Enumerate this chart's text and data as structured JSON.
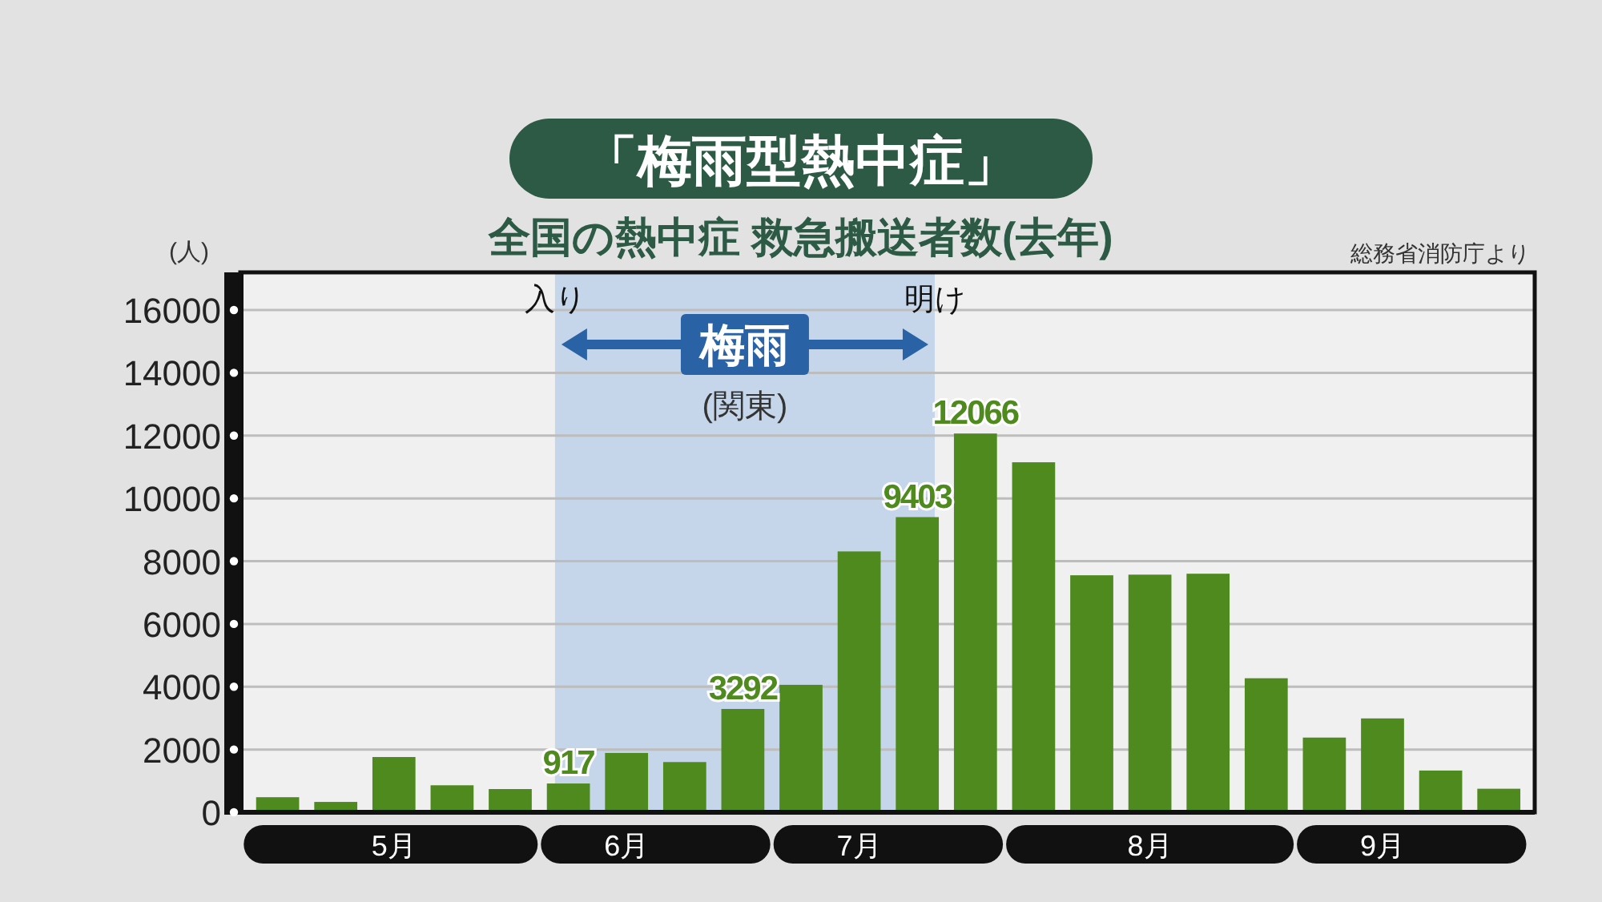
{
  "chart_data": {
    "type": "bar",
    "title": "「梅雨型熱中症」",
    "subtitle": "全国の熱中症 救急搬送者数(去年)",
    "ylabel": "(人)",
    "categories": [
      null,
      null,
      "5月",
      null,
      null,
      null,
      "6月",
      null,
      null,
      null,
      "7月",
      null,
      null,
      null,
      null,
      "8月",
      null,
      null,
      null,
      "9月",
      null,
      null
    ],
    "values": [
      480,
      330,
      1760,
      860,
      740,
      917,
      1890,
      1600,
      3292,
      4060,
      8310,
      9403,
      12066,
      11150,
      7550,
      7570,
      7600,
      4270,
      2380,
      2990,
      1330,
      750
    ],
    "value_labels": [
      null,
      null,
      null,
      null,
      null,
      "917",
      null,
      null,
      "3292",
      null,
      null,
      "9403",
      "12066",
      null,
      null,
      null,
      null,
      null,
      null,
      null,
      null,
      null
    ],
    "color": "#4e8a1e",
    "ylim": [
      0,
      17200
    ],
    "yticks": [
      0,
      2000,
      4000,
      6000,
      8000,
      10000,
      12000,
      14000,
      16000
    ],
    "grid": "y",
    "annotations": [
      "総務省消防庁より",
      "入り",
      "明け",
      "梅雨",
      "(関東)"
    ]
  }
}
